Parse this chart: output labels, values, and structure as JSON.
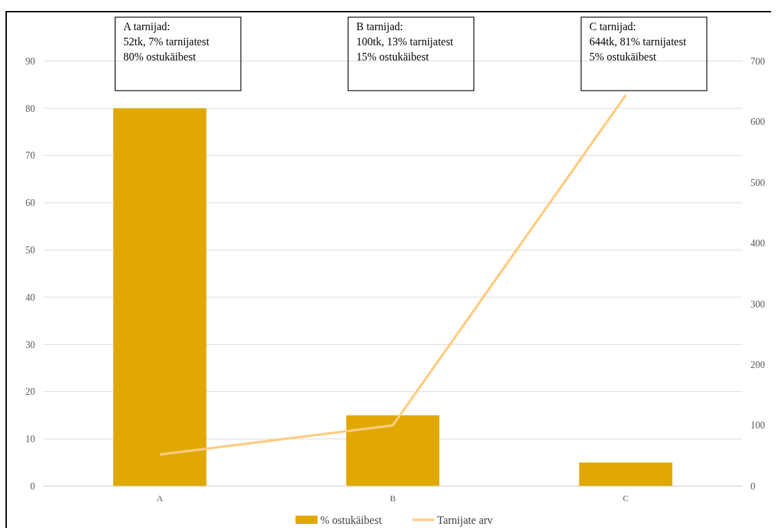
{
  "chart_data": {
    "type": "bar",
    "categories": [
      "A",
      "B",
      "C"
    ],
    "series": [
      {
        "name": "% ostukäibest",
        "color": "#e0a800",
        "values": [
          80,
          15,
          5
        ]
      },
      {
        "name": "Tarnijate arv",
        "type": "line",
        "axis": "y2",
        "color": "#ffcc80",
        "values": [
          52,
          100,
          644
        ]
      }
    ],
    "ylim": [
      0,
      90
    ],
    "yticks": [
      0,
      10,
      20,
      30,
      40,
      50,
      60,
      70,
      80,
      90
    ],
    "y2lim": [
      0,
      700
    ],
    "y2ticks": [
      0,
      100,
      200,
      300,
      400,
      500,
      600,
      700
    ],
    "grid": "y",
    "legend": "bottom",
    "marker": "none",
    "line_style": "solid",
    "annotations": [
      "A tarnijad:\n52tk, 7% tarnijatest\n80% ostukäibest",
      "B tarnijad:\n100tk, 13% tarnijatest\n15% ostukäibest",
      "C tarnijad:\n644tk, 81% tarnijatest\n5% ostukäibest"
    ]
  }
}
